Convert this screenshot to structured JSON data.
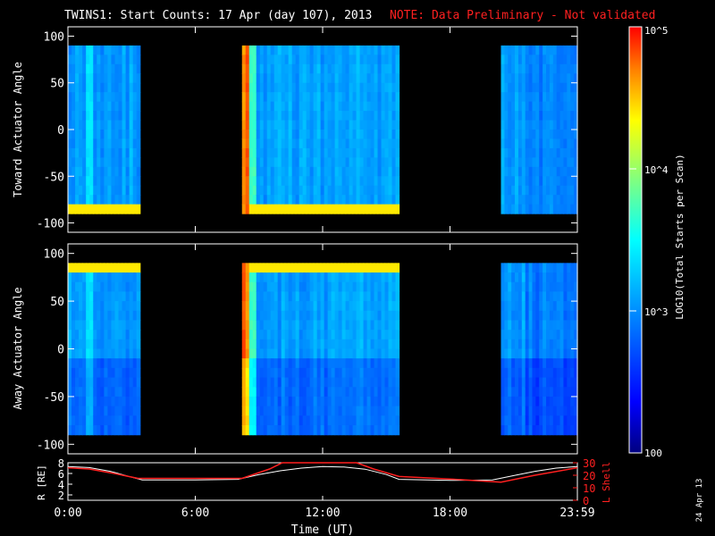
{
  "header": {
    "title": "TWINS1: Start Counts: 17 Apr (day 107), 2013",
    "note": "NOTE: Data Preliminary - Not validated",
    "note_color": "#ff2020"
  },
  "footer": {
    "date_stamp": "24 Apr 13"
  },
  "colorbar": {
    "label": "LOG10(Total Starts per Scan)",
    "ticks": [
      "10^5",
      "10^4",
      "10^3",
      "100"
    ],
    "scale": "log",
    "range": [
      100,
      100000
    ]
  },
  "chart_data": [
    {
      "type": "heatmap",
      "ylabel": "Toward Actuator Angle",
      "ylim": [
        -110,
        110
      ],
      "yticks": [
        "100",
        "50",
        "0",
        "-50",
        "-100"
      ],
      "xlim_hours": [
        0,
        24
      ],
      "data_blocks_hours": [
        [
          0.0,
          3.4
        ],
        [
          8.2,
          15.6
        ],
        [
          20.4,
          24.0
        ]
      ],
      "angle_range": [
        -90,
        90
      ]
    },
    {
      "type": "heatmap",
      "ylabel": "Away Actuator Angle",
      "ylim": [
        -110,
        110
      ],
      "yticks": [
        "100",
        "50",
        "0",
        "-50",
        "-100"
      ],
      "xlim_hours": [
        0,
        24
      ],
      "data_blocks_hours": [
        [
          0.0,
          3.4
        ],
        [
          8.2,
          15.6
        ],
        [
          20.4,
          24.0
        ]
      ],
      "angle_range": [
        -90,
        90
      ]
    },
    {
      "type": "line",
      "ylabel_left": "R [RE]",
      "ylabel_right": "L Shell",
      "yticks_left": [
        "8",
        "6",
        "4",
        "2"
      ],
      "ylim_left": [
        1,
        8
      ],
      "yticks_right": [
        "30",
        "20",
        "10",
        "0"
      ],
      "ylim_right": [
        0,
        30
      ],
      "xlabel": "Time (UT)",
      "xticks": [
        "0:00",
        "6:00",
        "12:00",
        "18:00",
        "23:59"
      ],
      "xticks_hours": [
        0,
        6,
        12,
        18,
        24
      ],
      "series": [
        {
          "name": "R [RE]",
          "color": "#ffffff",
          "x": [
            0,
            1,
            2,
            3,
            3.5,
            6,
            8,
            9,
            10,
            11,
            12,
            13,
            14,
            15,
            15.6,
            18,
            20,
            21,
            22,
            23,
            24
          ],
          "y": [
            7.3,
            7.1,
            6.4,
            5.3,
            4.8,
            4.8,
            4.9,
            5.8,
            6.5,
            7.0,
            7.3,
            7.2,
            6.8,
            5.8,
            4.9,
            4.7,
            4.8,
            5.6,
            6.4,
            7.0,
            7.3
          ]
        },
        {
          "name": "L Shell",
          "color": "#ff2020",
          "x": [
            0,
            1,
            2,
            3.3,
            6,
            8.2,
            9.5,
            10.1,
            13.6,
            14.4,
            15.6,
            18,
            20.4,
            22,
            24
          ],
          "y": [
            26,
            25,
            22,
            17.5,
            17.5,
            17.5,
            25,
            30,
            30,
            25,
            19,
            17,
            14.5,
            20,
            26
          ]
        }
      ]
    }
  ]
}
